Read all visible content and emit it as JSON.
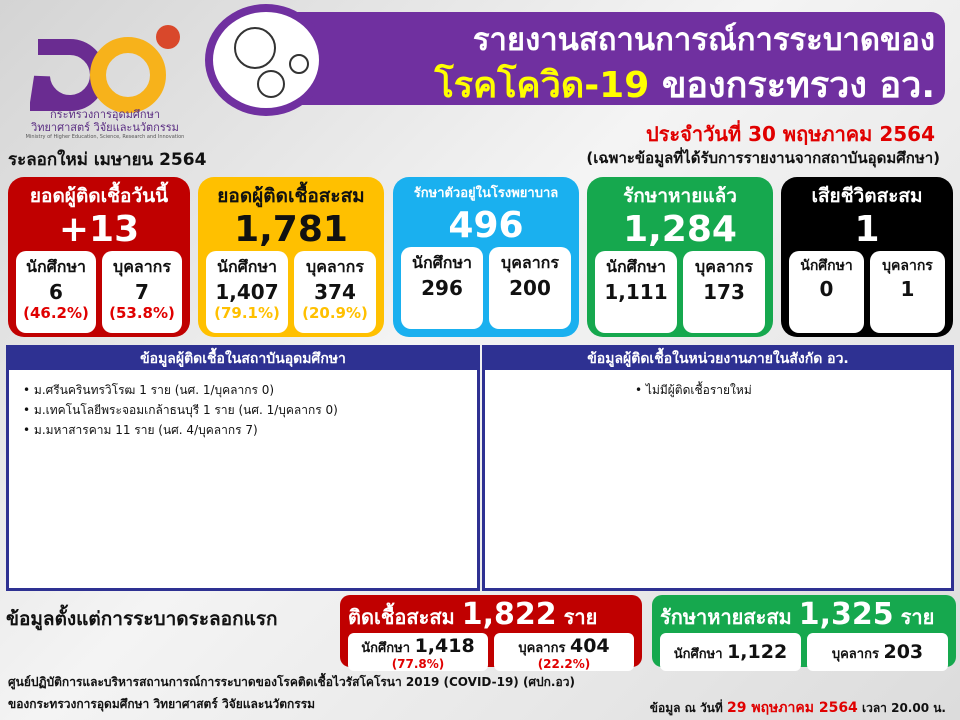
{
  "logo": {
    "org_line1": "กระทรวงการอุดมศึกษา",
    "org_line2": "วิทยาศาสตร์ วิจัยและนวัตกรรม",
    "org_en": "Ministry of Higher Education, Science, Research and Innovation"
  },
  "header": {
    "title_line1": "รายงานสถานการณ์การระบาดของ",
    "title_disease": "โรคโควิด-19",
    "title_ministry": "ของกระทรวง อว.",
    "date": "ประจำวันที่ 30 พฤษภาคม 2564",
    "note": "(เฉพาะข้อมูลที่ได้รับการรายงานจากสถาบันอุดมศึกษา)",
    "wave": "ระลอกใหม่ เมษายน 2564"
  },
  "labels": {
    "student": "นักศึกษา",
    "staff": "บุคลากร",
    "unit": "ราย"
  },
  "cards": [
    {
      "title": "ยอดผู้ติดเชื้อวันนี้",
      "total": "+13",
      "student": "6",
      "staff": "7",
      "student_pct": "(46.2%)",
      "staff_pct": "(53.8%)",
      "color": "#c00000"
    },
    {
      "title": "ยอดผู้ติดเชื้อสะสม",
      "total": "1,781",
      "student": "1,407",
      "staff": "374",
      "student_pct": "(79.1%)",
      "staff_pct": "(20.9%)",
      "color": "#ffc000"
    },
    {
      "title": "รักษาตัวอยู่ในโรงพยาบาล",
      "total": "496",
      "student": "296",
      "staff": "200",
      "color": "#1ab0ef"
    },
    {
      "title": "รักษาหายแล้ว",
      "total": "1,284",
      "student": "1,111",
      "staff": "173",
      "color": "#16a84e"
    },
    {
      "title": "เสียชีวิตสะสม",
      "total": "1",
      "student": "0",
      "staff": "1",
      "color": "#000000"
    }
  ],
  "panels": {
    "institutions": {
      "title": "ข้อมูลผู้ติดเชื้อในสถาบันอุดมศึกษา",
      "items": [
        "ม.ศรีนครินทรวิโรฒ  1 ราย (นศ. 1/บุคลากร 0)",
        "ม.เทคโนโลยีพระจอมเกล้าธนบุรี 1 ราย (นศ. 1/บุคลากร 0)",
        "ม.มหาสารคาม 11 ราย (นศ. 4/บุคลากร 7)"
      ]
    },
    "agencies": {
      "title": "ข้อมูลผู้ติดเชื้อในหน่วยงานภายในสังกัด อว.",
      "items": [
        "ไม่มีผู้ติดเชื้อรายใหม่"
      ]
    }
  },
  "since_first": {
    "label": "ข้อมูลตั้งแต่การระบาดระลอกแรก",
    "infected": {
      "title": "ติดเชื้อสะสม",
      "total": "1,822",
      "student": "1,418",
      "student_pct": "(77.8%)",
      "staff": "404",
      "staff_pct": "(22.2%)"
    },
    "recovered": {
      "title": "รักษาหายสะสม",
      "total": "1,325",
      "student": "1,122",
      "staff": "203"
    }
  },
  "footer": {
    "line1": "ศูนย์ปฏิบัติการและบริหารสถานการณ์การระบาดของโรคติดเชื้อไวรัสโคโรนา  2019 (COVID-19) (ศปก.อว)",
    "line2": "ของกระทรวงการอุดมศึกษา  วิทยาศาสตร์ วิจัยและนวัตกรรม",
    "asof_prefix": "ข้อมูล ณ วันที่",
    "asof_date": "29 พฤษภาคม 2564",
    "asof_time": "เวลา 20.00 น."
  }
}
